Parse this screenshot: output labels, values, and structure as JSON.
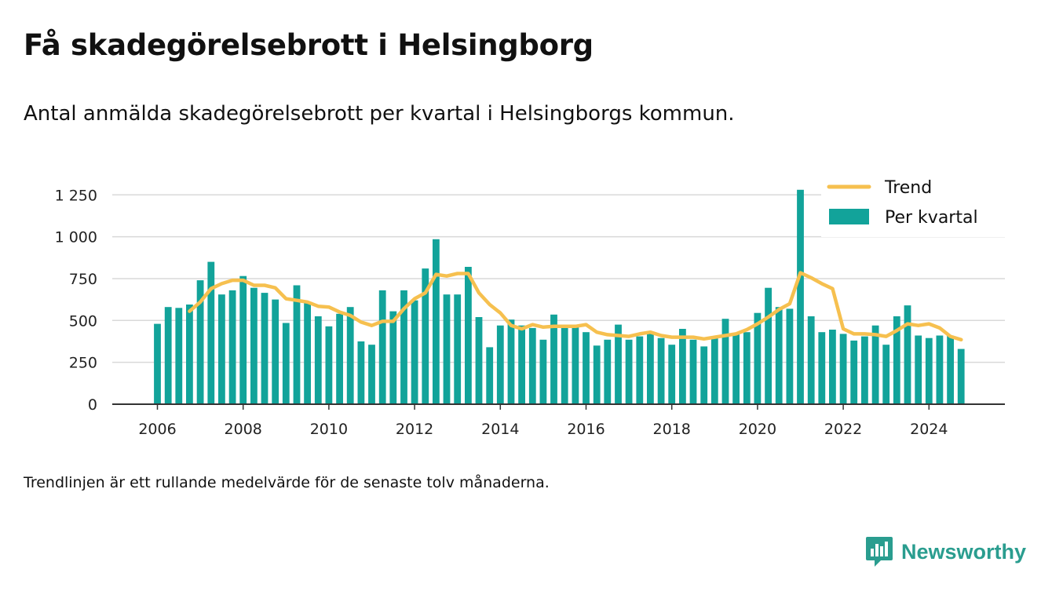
{
  "header": {
    "title": "Få skadegörelsebrott i Helsingborg",
    "subtitle": "Antal anmälda skadegörelsebrott per kvartal i Helsingborgs kommun."
  },
  "footer": {
    "note": "Trendlinjen är ett rullande medelvärde för de senaste tolv månaderna.",
    "brand": "Newsworthy"
  },
  "colors": {
    "bar": "#12a39a",
    "trend": "#f6c04f",
    "grid": "#d9d9d9",
    "axis": "#333333",
    "brand": "#2a9d8f"
  },
  "chart_data": {
    "type": "bar",
    "x_unit": "quarter",
    "start": "2006 Q1",
    "end": "2024 Q4",
    "ylim": [
      0,
      1290
    ],
    "yticks": [
      0,
      250,
      500,
      750,
      1000,
      1250
    ],
    "ytick_labels": [
      "0",
      "250",
      "500",
      "750",
      "1 000",
      "1 250"
    ],
    "xticks": [
      "2006",
      "2008",
      "2010",
      "2012",
      "2014",
      "2016",
      "2018",
      "2020",
      "2022",
      "2024"
    ],
    "grid": "horizontal",
    "legend_placement": "top-right",
    "series": [
      {
        "name": "Per kvartal",
        "kind": "bar",
        "values": [
          480,
          580,
          575,
          595,
          740,
          850,
          655,
          680,
          765,
          695,
          665,
          625,
          485,
          710,
          610,
          525,
          465,
          540,
          580,
          375,
          355,
          680,
          555,
          680,
          620,
          810,
          985,
          655,
          655,
          820,
          520,
          340,
          470,
          505,
          470,
          455,
          385,
          535,
          460,
          460,
          430,
          350,
          385,
          475,
          385,
          405,
          425,
          395,
          355,
          450,
          385,
          345,
          395,
          510,
          420,
          430,
          545,
          695,
          580,
          570,
          1280,
          525,
          430,
          445,
          420,
          380,
          405,
          470,
          355,
          525,
          590,
          410,
          395,
          410,
          410,
          330
        ]
      },
      {
        "name": "Trend",
        "kind": "line",
        "values": [
          null,
          null,
          null,
          555,
          610,
          690,
          720,
          740,
          740,
          710,
          710,
          695,
          630,
          620,
          610,
          585,
          580,
          550,
          530,
          490,
          470,
          495,
          495,
          570,
          630,
          665,
          775,
          765,
          780,
          780,
          665,
          595,
          545,
          470,
          450,
          475,
          460,
          465,
          465,
          465,
          475,
          430,
          415,
          410,
          405,
          420,
          430,
          410,
          400,
          400,
          400,
          390,
          400,
          410,
          420,
          445,
          480,
          520,
          565,
          600,
          785,
          755,
          720,
          690,
          450,
          420,
          420,
          415,
          405,
          440,
          480,
          470,
          480,
          455,
          405,
          385
        ]
      }
    ]
  }
}
